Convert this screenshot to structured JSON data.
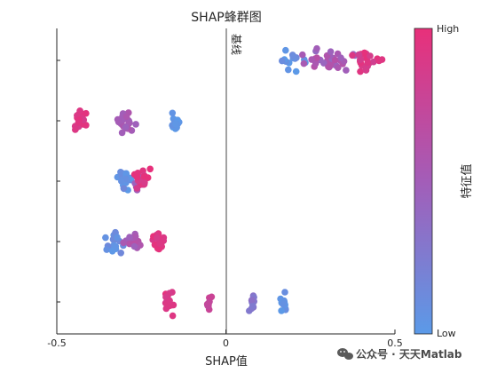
{
  "chart_data": {
    "type": "scatter",
    "subtype": "shap-beeswarm",
    "title": "SHAP蜂群图",
    "xlabel": "SHAP值",
    "xlim": [
      -0.5,
      0.5
    ],
    "xticks": [
      "-0.5",
      "0",
      "0.5"
    ],
    "baseline_x": 0,
    "baseline_label": "基线",
    "colorbar": {
      "label": "特征值",
      "high_label": "High",
      "low_label": "Low",
      "high_color": "#e8307a",
      "low_color": "#5b9ae8"
    },
    "rows": [
      {
        "clusters": [
          {
            "cx": 0.2,
            "spread": 0.03,
            "n": 14,
            "color_range": [
              0.0,
              0.15
            ]
          },
          {
            "cx": 0.31,
            "spread": 0.06,
            "n": 36,
            "color_range": [
              0.4,
              0.65
            ]
          },
          {
            "cx": 0.41,
            "spread": 0.03,
            "n": 24,
            "color_range": [
              0.8,
              1.0
            ]
          }
        ]
      },
      {
        "clusters": [
          {
            "cx": -0.43,
            "spread": 0.02,
            "n": 24,
            "color_range": [
              0.85,
              1.0
            ]
          },
          {
            "cx": -0.3,
            "spread": 0.02,
            "n": 22,
            "color_range": [
              0.45,
              0.6
            ]
          },
          {
            "cx": -0.15,
            "spread": 0.008,
            "n": 16,
            "color_range": [
              0.0,
              0.1
            ]
          }
        ]
      },
      {
        "clusters": [
          {
            "cx": -0.3,
            "spread": 0.02,
            "n": 24,
            "color_range": [
              0.0,
              0.15
            ]
          },
          {
            "cx": -0.26,
            "spread": 0.02,
            "n": 10,
            "color_range": [
              0.45,
              0.6
            ]
          },
          {
            "cx": -0.25,
            "spread": 0.02,
            "n": 16,
            "color_range": [
              0.85,
              1.0
            ]
          }
        ]
      },
      {
        "clusters": [
          {
            "cx": -0.33,
            "spread": 0.025,
            "n": 20,
            "color_range": [
              0.0,
              0.15
            ]
          },
          {
            "cx": -0.27,
            "spread": 0.02,
            "n": 20,
            "color_range": [
              0.45,
              0.65
            ]
          },
          {
            "cx": -0.2,
            "spread": 0.015,
            "n": 20,
            "color_range": [
              0.85,
              1.0
            ]
          }
        ]
      },
      {
        "clusters": [
          {
            "cx": -0.17,
            "spread": 0.012,
            "n": 16,
            "color_range": [
              0.85,
              1.0
            ]
          },
          {
            "cx": -0.05,
            "spread": 0.006,
            "n": 10,
            "color_range": [
              0.7,
              0.8
            ]
          },
          {
            "cx": 0.08,
            "spread": 0.008,
            "n": 12,
            "color_range": [
              0.25,
              0.35
            ]
          },
          {
            "cx": 0.17,
            "spread": 0.008,
            "n": 12,
            "color_range": [
              0.0,
              0.1
            ]
          }
        ]
      }
    ]
  },
  "watermark": {
    "icon": "wechat-icon",
    "text": "公众号 · 天天Matlab"
  }
}
